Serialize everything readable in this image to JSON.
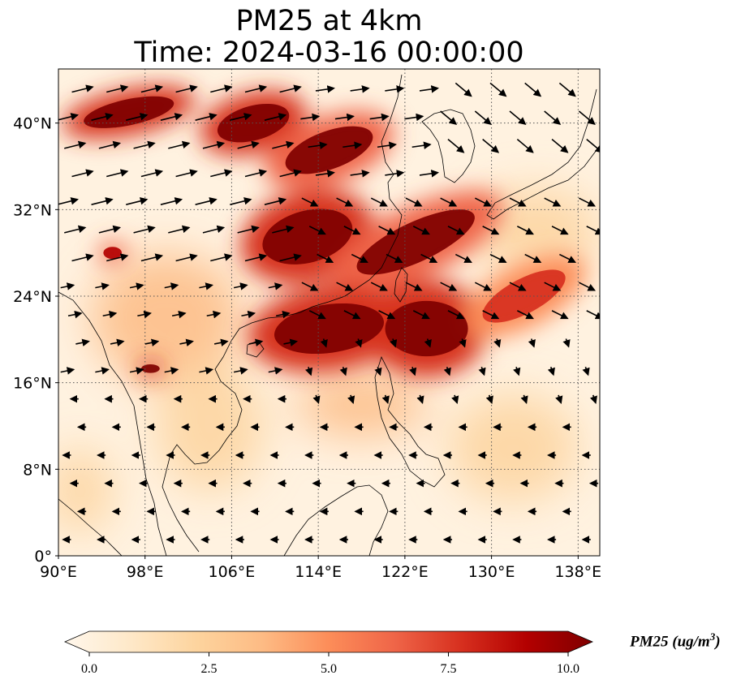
{
  "title": {
    "line1": "PM25 at 4km",
    "line2": "Time: 2024-03-16 00:00:00"
  },
  "map": {
    "extent": {
      "lon_min": 90,
      "lon_max": 140,
      "lat_min": 0,
      "lat_max": 45
    },
    "gridlines": "dotted",
    "colormap": "OrRd",
    "x_ticks": [
      {
        "lon": 90,
        "label": "90°E"
      },
      {
        "lon": 98,
        "label": "98°E"
      },
      {
        "lon": 106,
        "label": "106°E"
      },
      {
        "lon": 114,
        "label": "114°E"
      },
      {
        "lon": 122,
        "label": "122°E"
      },
      {
        "lon": 130,
        "label": "130°E"
      },
      {
        "lon": 138,
        "label": "138°E"
      }
    ],
    "y_ticks": [
      {
        "lat": 0,
        "label": "0°"
      },
      {
        "lat": 8,
        "label": "8°N"
      },
      {
        "lat": 16,
        "label": "16°N"
      },
      {
        "lat": 24,
        "label": "24°N"
      },
      {
        "lat": 32,
        "label": "32°N"
      },
      {
        "lat": 40,
        "label": "40°N"
      }
    ],
    "plumes": [
      {
        "name": "northern-band",
        "lon": 96.5,
        "lat": 41,
        "rx": 5,
        "ry": 1.5,
        "rot": 12,
        "level": 10
      },
      {
        "name": "north-china",
        "lon": 108,
        "lat": 40,
        "rx": 4,
        "ry": 2,
        "rot": 15,
        "level": 10
      },
      {
        "name": "north-china-2",
        "lon": 115,
        "lat": 37.5,
        "rx": 5,
        "ry": 2.2,
        "rot": 20,
        "level": 9.5
      },
      {
        "name": "central-china",
        "lon": 113,
        "lat": 29.5,
        "rx": 5,
        "ry": 3,
        "rot": 15,
        "level": 10
      },
      {
        "name": "east-china-sea",
        "lon": 123,
        "lat": 29,
        "rx": 7,
        "ry": 2.3,
        "rot": 25,
        "level": 9.5
      },
      {
        "name": "south-china",
        "lon": 115,
        "lat": 21,
        "rx": 6,
        "ry": 2.8,
        "rot": 8,
        "level": 10
      },
      {
        "name": "luzon-strait",
        "lon": 124,
        "lat": 21,
        "rx": 4.5,
        "ry": 3.2,
        "rot": 0,
        "level": 10
      },
      {
        "name": "pacific-tail",
        "lon": 133,
        "lat": 24,
        "rx": 5,
        "ry": 2,
        "rot": 28,
        "level": 8
      },
      {
        "name": "myanmar-spot",
        "lon": 98.5,
        "lat": 17.3,
        "rx": 1,
        "ry": 0.5,
        "rot": 0,
        "level": 10
      },
      {
        "name": "yunnan-spot",
        "lon": 95,
        "lat": 28,
        "rx": 1,
        "ry": 0.7,
        "rot": 0,
        "level": 9
      }
    ],
    "haze": [
      {
        "lon": 100,
        "lat": 22,
        "rx": 7,
        "ry": 6,
        "level": 4
      },
      {
        "lon": 104,
        "lat": 12,
        "rx": 5,
        "ry": 6,
        "level": 3
      },
      {
        "lon": 92,
        "lat": 6,
        "rx": 3,
        "ry": 4,
        "level": 3
      },
      {
        "lon": 134,
        "lat": 30,
        "rx": 6,
        "ry": 4,
        "level": 2.5
      },
      {
        "lon": 132,
        "lat": 10,
        "rx": 6,
        "ry": 5,
        "level": 2
      },
      {
        "lon": 118,
        "lat": 14,
        "rx": 6,
        "ry": 3,
        "level": 3.5
      }
    ],
    "coastline_regions": [
      "china-coast",
      "korea",
      "japan",
      "taiwan",
      "luzon",
      "indochina",
      "malay-peninsula",
      "borneo"
    ]
  },
  "colorbar": {
    "min": 0.0,
    "max": 10.0,
    "ticks": [
      "0.0",
      "2.5",
      "5.0",
      "7.5",
      "10.0"
    ],
    "label_main": "PM25 (ug/m",
    "label_exp": "3",
    "label_close": ")",
    "colors": [
      "#fff7ec",
      "#fee8c8",
      "#fdd49e",
      "#fdbb84",
      "#fc8d59",
      "#ef6548",
      "#d7301f",
      "#b30000",
      "#7f0000"
    ]
  },
  "wind": {
    "description_hidden": false,
    "regions": [
      {
        "lon_range": [
          90,
          112
        ],
        "lat_range": [
          26,
          45
        ],
        "u": 8,
        "v": 2
      },
      {
        "lon_range": [
          112,
          125
        ],
        "lat_range": [
          33,
          45
        ],
        "u": 7,
        "v": 1
      },
      {
        "lon_range": [
          125,
          140
        ],
        "lat_range": [
          36,
          45
        ],
        "u": 6,
        "v": -5
      },
      {
        "lon_range": [
          112,
          140
        ],
        "lat_range": [
          20,
          33
        ],
        "u": 6,
        "v": -3
      },
      {
        "lon_range": [
          90,
          112
        ],
        "lat_range": [
          17,
          26
        ],
        "u": 5,
        "v": 1
      },
      {
        "lon_range": [
          112,
          140
        ],
        "lat_range": [
          12,
          20
        ],
        "u": 1,
        "v": -3
      },
      {
        "lon_range": [
          90,
          140
        ],
        "lat_range": [
          0,
          17
        ],
        "u": -3,
        "v": 0
      }
    ]
  }
}
